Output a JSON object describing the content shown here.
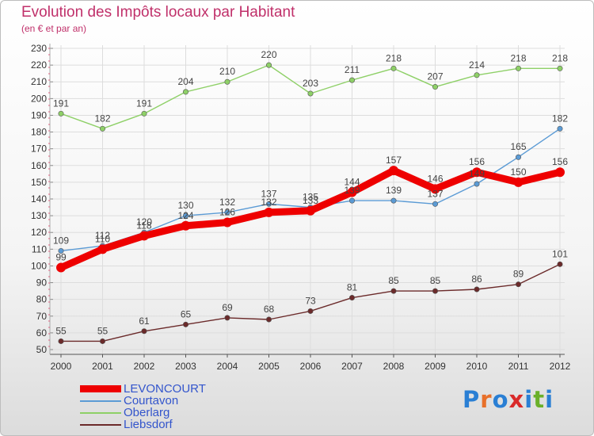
{
  "header": {
    "title": "Evolution des Impôts locaux par Habitant",
    "subtitle": "(en € et par an)"
  },
  "colors": {
    "title": "#c0306a",
    "axis_text": "#333333",
    "grid": "#dddddd",
    "levoncourt": "#ee0000",
    "courtavon": "#5b9bd5",
    "oberlarg": "#8ed067",
    "liebsdorf": "#6b2a2a",
    "legend_text": "#3355cc"
  },
  "legend": {
    "items": [
      {
        "label": "LEVONCOURT",
        "color": "#ee0000",
        "key": "levoncourt"
      },
      {
        "label": "Courtavon",
        "color": "#5b9bd5",
        "key": "courtavon"
      },
      {
        "label": "Oberlarg",
        "color": "#8ed067",
        "key": "oberlarg"
      },
      {
        "label": "Liebsdorf",
        "color": "#6b2a2a",
        "key": "liebsdorf"
      }
    ]
  },
  "logo": {
    "letters": [
      "P",
      "r",
      "o",
      "x",
      "i",
      "t",
      "i"
    ],
    "colors": [
      "#2a7fd4",
      "#e8702a",
      "#2a7fd4",
      "#d92a2a",
      "#2a7fd4",
      "#6ab02a",
      "#2a7fd4"
    ]
  },
  "chart_data": {
    "type": "line",
    "title": "Evolution des Impôts locaux par Habitant",
    "subtitle": "(en € et par an)",
    "x": [
      "2000",
      "2001",
      "2002",
      "2003",
      "2004",
      "2005",
      "2006",
      "2007",
      "2008",
      "2009",
      "2010",
      "2011",
      "2012"
    ],
    "ylim": [
      50,
      230
    ],
    "yticks": [
      50,
      60,
      70,
      80,
      90,
      100,
      110,
      120,
      130,
      140,
      150,
      160,
      170,
      180,
      190,
      200,
      210,
      220,
      230
    ],
    "grid": true,
    "legend_position": "bottom-left",
    "series": [
      {
        "key": "oberlarg",
        "name": "Oberlarg",
        "values": [
          191,
          182,
          191,
          204,
          210,
          220,
          203,
          211,
          218,
          207,
          214,
          218,
          218
        ]
      },
      {
        "key": "courtavon",
        "name": "Courtavon",
        "values": [
          109,
          112,
          120,
          130,
          132,
          137,
          135,
          139,
          139,
          137,
          149,
          165,
          182
        ]
      },
      {
        "key": "liebsdorf",
        "name": "Liebsdorf",
        "values": [
          55,
          55,
          61,
          65,
          69,
          68,
          73,
          81,
          85,
          85,
          86,
          89,
          101
        ]
      },
      {
        "key": "levoncourt",
        "name": "LEVONCOURT",
        "values": [
          99,
          110,
          118,
          124,
          126,
          132,
          133,
          144,
          157,
          146,
          156,
          150,
          156
        ]
      }
    ]
  }
}
